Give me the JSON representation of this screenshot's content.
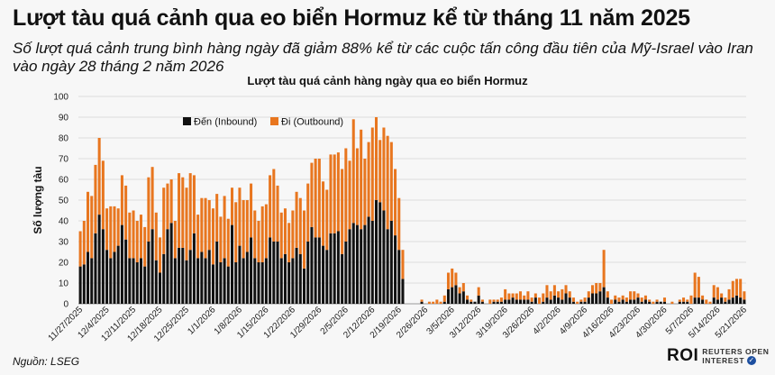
{
  "header": {
    "title": "Lượt tàu quá cảnh qua eo biển Hormuz kể từ tháng 11 năm 2025",
    "subtitle": "Số lượt quá cảnh trung bình hàng ngày đã giảm 88% kể từ các cuộc tấn công đầu tiên của Mỹ-Israel vào Iran vào ngày 28 tháng 2 năm 2026"
  },
  "footer": {
    "source": "Nguồn: LSEG",
    "logo_main": "ROI",
    "logo_line1": "REUTERS OPEN",
    "logo_line2": "INTEREST"
  },
  "colors": {
    "inbound": "#111111",
    "outbound": "#e8761f",
    "background": "#f7f7f7",
    "gridline": "#dddddd"
  },
  "chart_data": {
    "type": "bar",
    "stacked": true,
    "title": "Lượt tàu quá cảnh hàng ngày qua eo biển Hormuz",
    "ylabel": "Số lượng tàu",
    "xlabel": "",
    "ylim": [
      0,
      100
    ],
    "yticks": [
      0,
      10,
      20,
      30,
      40,
      50,
      60,
      70,
      80,
      90,
      100
    ],
    "grid": true,
    "legend_position": "top-left",
    "x_start": "2025-11-27",
    "x_end": "2026-05-27",
    "xtick_labels": [
      "11/27/2025",
      "12/4/2025",
      "12/11/2025",
      "12/18/2025",
      "12/25/2025",
      "1/1/2026",
      "1/8/2026",
      "1/15/2026",
      "1/22/2026",
      "1/29/2026",
      "2/5/2026",
      "2/12/2026",
      "2/19/2026",
      "2/26/2026",
      "3/5/2026",
      "3/12/2026",
      "3/19/2026",
      "3/26/2026",
      "4/2/2026",
      "4/9/2026",
      "4/16/2026",
      "4/23/2026",
      "4/30/2026",
      "5/7/2026",
      "5/14/2026",
      "5/21/2026"
    ],
    "series": [
      {
        "name": "Đến (Inbound)",
        "values": [
          18,
          19,
          25,
          22,
          34,
          43,
          36,
          26,
          22,
          25,
          28,
          38,
          31,
          22,
          22,
          20,
          22,
          18,
          30,
          36,
          21,
          15,
          24,
          36,
          39,
          22,
          27,
          27,
          21,
          26,
          34,
          22,
          25,
          22,
          26,
          19,
          30,
          20,
          22,
          18,
          38,
          20,
          28,
          22,
          25,
          32,
          22,
          20,
          20,
          22,
          32,
          30,
          30,
          22,
          24,
          20,
          22,
          27,
          24,
          17,
          30,
          37,
          32,
          32,
          28,
          26,
          34,
          34,
          35,
          24,
          30,
          36,
          39,
          38,
          36,
          38,
          42,
          40,
          50,
          49,
          45,
          36,
          40,
          33,
          26,
          12,
          0,
          0,
          0,
          0,
          1,
          0,
          0,
          0,
          0,
          0,
          1,
          7,
          8,
          9,
          5,
          6,
          2,
          1,
          1,
          4,
          1,
          0,
          0,
          1,
          1,
          1,
          2,
          2,
          3,
          2,
          2,
          2,
          2,
          1,
          3,
          0,
          1,
          3,
          2,
          4,
          3,
          2,
          5,
          3,
          1,
          0,
          1,
          1,
          3,
          5,
          5,
          6,
          8,
          3,
          0,
          2,
          1,
          2,
          1,
          2,
          2,
          3,
          1,
          2,
          1,
          0,
          1,
          1,
          1,
          0,
          0,
          0,
          1,
          1,
          1,
          0,
          3,
          3,
          2,
          0,
          0,
          3,
          2,
          3,
          1,
          2,
          3,
          4,
          3,
          2
        ]
      },
      {
        "name": "Đi (Outbound)",
        "values": [
          17,
          21,
          29,
          30,
          33,
          37,
          33,
          20,
          25,
          22,
          18,
          24,
          26,
          22,
          23,
          20,
          21,
          19,
          31,
          30,
          23,
          17,
          32,
          22,
          21,
          18,
          36,
          34,
          35,
          37,
          28,
          21,
          26,
          29,
          24,
          27,
          23,
          22,
          30,
          23,
          18,
          29,
          28,
          28,
          25,
          26,
          23,
          20,
          27,
          26,
          30,
          35,
          27,
          22,
          22,
          19,
          23,
          27,
          27,
          28,
          28,
          31,
          38,
          38,
          31,
          29,
          38,
          38,
          38,
          41,
          45,
          33,
          50,
          37,
          48,
          32,
          36,
          45,
          40,
          30,
          40,
          45,
          38,
          32,
          25,
          14,
          0,
          0,
          0,
          0,
          1,
          0,
          1,
          1,
          2,
          1,
          3,
          8,
          9,
          6,
          3,
          4,
          2,
          1,
          0,
          4,
          1,
          0,
          2,
          1,
          1,
          2,
          5,
          3,
          2,
          3,
          4,
          2,
          4,
          2,
          2,
          3,
          4,
          6,
          4,
          5,
          3,
          5,
          4,
          3,
          2,
          1,
          1,
          2,
          3,
          4,
          5,
          4,
          18,
          3,
          2,
          2,
          2,
          2,
          2,
          4,
          4,
          2,
          2,
          2,
          1,
          1,
          1,
          0,
          2,
          0,
          1,
          0,
          1,
          2,
          1,
          4,
          12,
          10,
          2,
          2,
          1,
          6,
          6,
          2,
          2,
          5,
          8,
          8,
          9,
          4
        ]
      }
    ]
  }
}
